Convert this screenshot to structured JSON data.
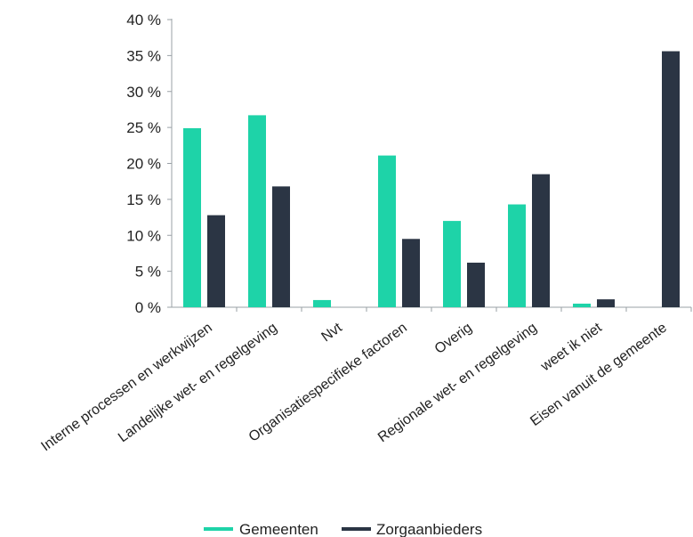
{
  "chart_data": {
    "type": "bar",
    "categories": [
      "Interne processen en werkwijzen",
      "Landelijke wet- en regelgeving",
      "Nvt",
      "Organisatiespecifieke factoren",
      "Overig",
      "Regionale wet- en regelgeving",
      "weet ik niet",
      "Eisen vanuit de gemeente"
    ],
    "series": [
      {
        "name": "Gemeenten",
        "color": "#1ed3a8",
        "values": [
          24.9,
          26.7,
          1.0,
          21.1,
          12.0,
          14.3,
          0.5,
          0.0
        ]
      },
      {
        "name": "Zorgaanbieders",
        "color": "#2b3544",
        "values": [
          12.8,
          16.8,
          0.0,
          9.5,
          6.2,
          18.5,
          1.1,
          35.6
        ]
      }
    ],
    "yticks": [
      "0 %",
      "5 %",
      "10 %",
      "15 %",
      "20 %",
      "25 %",
      "30 %",
      "35 %",
      "40 %"
    ],
    "ylim": [
      0,
      40
    ],
    "title": "",
    "xlabel": "",
    "ylabel": "",
    "legend_position": "bottom",
    "grid": false,
    "axis_color": "#9aa0a6"
  }
}
